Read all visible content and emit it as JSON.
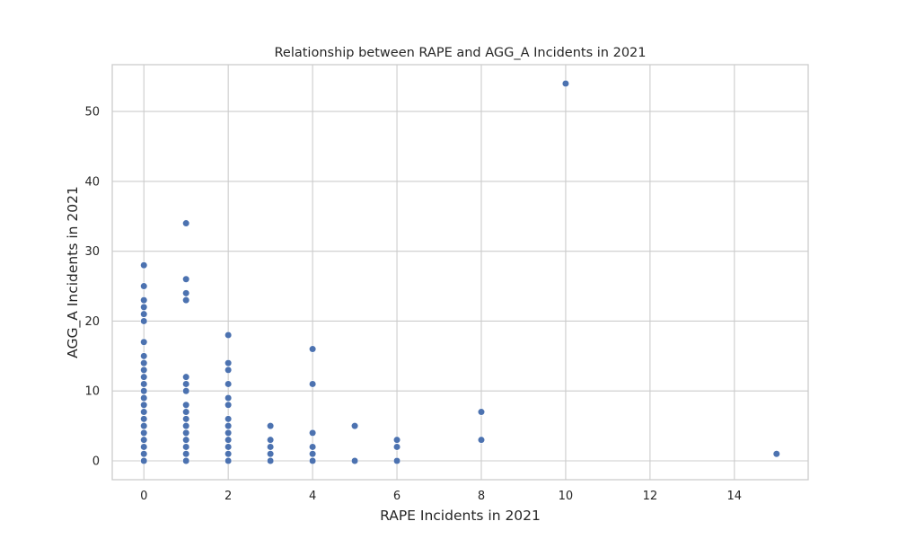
{
  "chart_data": {
    "type": "scatter",
    "title": "Relationship between RAPE and AGG_A Incidents in 2021",
    "xlabel": "RAPE Incidents in 2021",
    "ylabel": "AGG_A Incidents in 2021",
    "xlim": [
      -0.75,
      15.75
    ],
    "ylim": [
      -2.7,
      56.7
    ],
    "xticks": [
      0,
      2,
      4,
      6,
      8,
      10,
      12,
      14
    ],
    "yticks": [
      0,
      10,
      20,
      30,
      40,
      50
    ],
    "xtick_labels": [
      "0",
      "2",
      "4",
      "6",
      "8",
      "10",
      "12",
      "14"
    ],
    "ytick_labels": [
      "0",
      "10",
      "20",
      "30",
      "40",
      "50"
    ],
    "grid": true,
    "point_color": "#4c72b0",
    "points": [
      {
        "x": 0,
        "y": 0
      },
      {
        "x": 0,
        "y": 1
      },
      {
        "x": 0,
        "y": 2
      },
      {
        "x": 0,
        "y": 3
      },
      {
        "x": 0,
        "y": 4
      },
      {
        "x": 0,
        "y": 5
      },
      {
        "x": 0,
        "y": 6
      },
      {
        "x": 0,
        "y": 7
      },
      {
        "x": 0,
        "y": 8
      },
      {
        "x": 0,
        "y": 9
      },
      {
        "x": 0,
        "y": 10
      },
      {
        "x": 0,
        "y": 11
      },
      {
        "x": 0,
        "y": 12
      },
      {
        "x": 0,
        "y": 13
      },
      {
        "x": 0,
        "y": 14
      },
      {
        "x": 0,
        "y": 15
      },
      {
        "x": 0,
        "y": 17
      },
      {
        "x": 0,
        "y": 20
      },
      {
        "x": 0,
        "y": 21
      },
      {
        "x": 0,
        "y": 22
      },
      {
        "x": 0,
        "y": 23
      },
      {
        "x": 0,
        "y": 25
      },
      {
        "x": 0,
        "y": 28
      },
      {
        "x": 1,
        "y": 0
      },
      {
        "x": 1,
        "y": 1
      },
      {
        "x": 1,
        "y": 2
      },
      {
        "x": 1,
        "y": 3
      },
      {
        "x": 1,
        "y": 4
      },
      {
        "x": 1,
        "y": 5
      },
      {
        "x": 1,
        "y": 6
      },
      {
        "x": 1,
        "y": 7
      },
      {
        "x": 1,
        "y": 8
      },
      {
        "x": 1,
        "y": 10
      },
      {
        "x": 1,
        "y": 11
      },
      {
        "x": 1,
        "y": 12
      },
      {
        "x": 1,
        "y": 23
      },
      {
        "x": 1,
        "y": 24
      },
      {
        "x": 1,
        "y": 26
      },
      {
        "x": 1,
        "y": 34
      },
      {
        "x": 2,
        "y": 0
      },
      {
        "x": 2,
        "y": 1
      },
      {
        "x": 2,
        "y": 2
      },
      {
        "x": 2,
        "y": 3
      },
      {
        "x": 2,
        "y": 4
      },
      {
        "x": 2,
        "y": 5
      },
      {
        "x": 2,
        "y": 6
      },
      {
        "x": 2,
        "y": 8
      },
      {
        "x": 2,
        "y": 9
      },
      {
        "x": 2,
        "y": 11
      },
      {
        "x": 2,
        "y": 13
      },
      {
        "x": 2,
        "y": 14
      },
      {
        "x": 2,
        "y": 18
      },
      {
        "x": 3,
        "y": 0
      },
      {
        "x": 3,
        "y": 1
      },
      {
        "x": 3,
        "y": 2
      },
      {
        "x": 3,
        "y": 3
      },
      {
        "x": 3,
        "y": 5
      },
      {
        "x": 4,
        "y": 0
      },
      {
        "x": 4,
        "y": 1
      },
      {
        "x": 4,
        "y": 2
      },
      {
        "x": 4,
        "y": 4
      },
      {
        "x": 4,
        "y": 11
      },
      {
        "x": 4,
        "y": 16
      },
      {
        "x": 5,
        "y": 0
      },
      {
        "x": 5,
        "y": 5
      },
      {
        "x": 6,
        "y": 0
      },
      {
        "x": 6,
        "y": 2
      },
      {
        "x": 6,
        "y": 3
      },
      {
        "x": 8,
        "y": 3
      },
      {
        "x": 8,
        "y": 7
      },
      {
        "x": 10,
        "y": 54
      },
      {
        "x": 15,
        "y": 1
      }
    ]
  }
}
